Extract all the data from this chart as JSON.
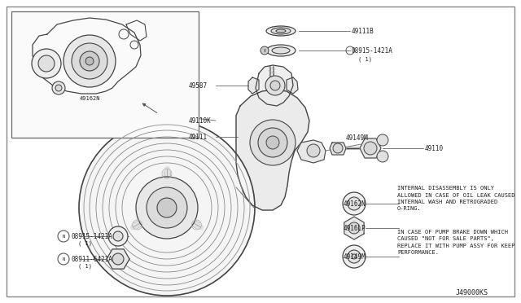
{
  "bg_color": "#ffffff",
  "border_color": "#555555",
  "line_color": "#444444",
  "text_color": "#222222",
  "diagram_id": "J49000KS",
  "fig_width": 6.4,
  "fig_height": 3.72,
  "dpi": 100,
  "note_text_1": "INTERNAL DISASSEMBLY IS ONLY\nALLOWED IN CASE OF OIL LEAK CAUSED\nINTERNAL WASH AND RETROGRADED\nO-RING.",
  "note_text_2": "IN CASE OF PUMP BRAKE DOWN WHICH\nCAUSED \"NOT FOR SALE PARTS\",\nREPLACE IT WITH PUMP ASSY FOR KEEP\nPERFORMANCE."
}
